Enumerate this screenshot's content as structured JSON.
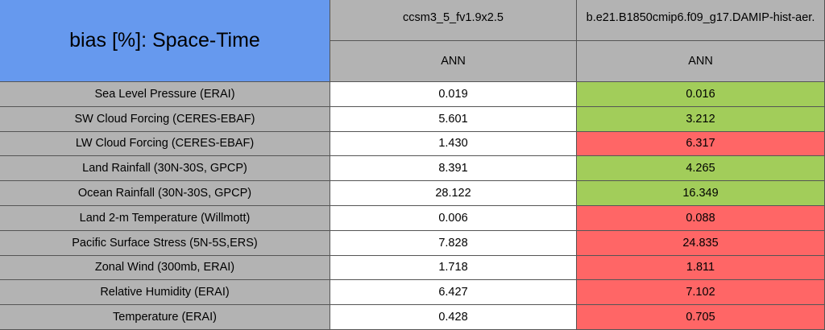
{
  "header": {
    "title": "bias [%]: Space-Time",
    "title_color": "#6699ee",
    "columns": [
      {
        "name": "ccsm3_5_fv1.9x2.5",
        "period": "ANN"
      },
      {
        "name": "b.e21.B1850cmip6.f09_g17.DAMIP-hist-aer.",
        "period": "ANN"
      }
    ]
  },
  "table": {
    "rows": [
      {
        "label": "Sea Level Pressure (ERAI)",
        "values": [
          "0.019",
          "0.016"
        ],
        "colors": [
          "#ffffff",
          "#a2cd5a"
        ]
      },
      {
        "label": "SW Cloud Forcing (CERES-EBAF)",
        "values": [
          "5.601",
          "3.212"
        ],
        "colors": [
          "#ffffff",
          "#a2cd5a"
        ]
      },
      {
        "label": "LW Cloud Forcing (CERES-EBAF)",
        "values": [
          "1.430",
          "6.317"
        ],
        "colors": [
          "#ffffff",
          "#ff6666"
        ]
      },
      {
        "label": "Land Rainfall (30N-30S, GPCP)",
        "values": [
          "8.391",
          "4.265"
        ],
        "colors": [
          "#ffffff",
          "#a2cd5a"
        ]
      },
      {
        "label": "Ocean Rainfall (30N-30S, GPCP)",
        "values": [
          "28.122",
          "16.349"
        ],
        "colors": [
          "#ffffff",
          "#a2cd5a"
        ]
      },
      {
        "label": "Land 2-m Temperature (Willmott)",
        "values": [
          "0.006",
          "0.088"
        ],
        "colors": [
          "#ffffff",
          "#ff6666"
        ]
      },
      {
        "label": "Pacific Surface Stress (5N-5S,ERS)",
        "values": [
          "7.828",
          "24.835"
        ],
        "colors": [
          "#ffffff",
          "#ff6666"
        ]
      },
      {
        "label": "Zonal Wind (300mb, ERAI)",
        "values": [
          "1.718",
          "1.811"
        ],
        "colors": [
          "#ffffff",
          "#ff6666"
        ]
      },
      {
        "label": "Relative Humidity (ERAI)",
        "values": [
          "6.427",
          "7.102"
        ],
        "colors": [
          "#ffffff",
          "#ff6666"
        ]
      },
      {
        "label": "Temperature (ERAI)",
        "values": [
          "0.428",
          "0.705"
        ],
        "colors": [
          "#ffffff",
          "#ff6666"
        ]
      }
    ]
  }
}
